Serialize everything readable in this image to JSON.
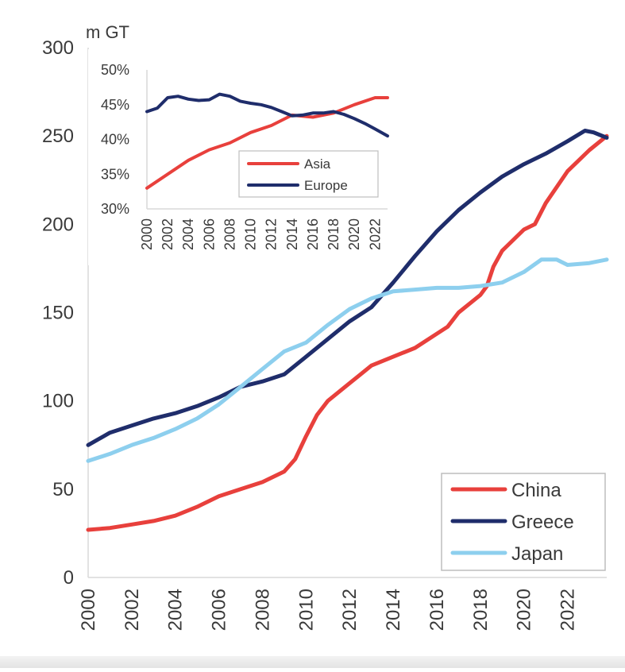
{
  "chart_data": [
    {
      "type": "line",
      "ylabel": "m GT",
      "ylim": [
        0,
        300
      ],
      "yticks": [
        "0",
        "50",
        "100",
        "150",
        "200",
        "250",
        "300"
      ],
      "xlim": [
        2000,
        2023.8
      ],
      "xticks": [
        "2000",
        "2002",
        "2004",
        "2006",
        "2008",
        "2010",
        "2012",
        "2014",
        "2016",
        "2018",
        "2020",
        "2022"
      ],
      "legend_position": "bottom-right",
      "series": [
        {
          "name": "China",
          "color": "#e8403c",
          "x": [
            2000,
            2001,
            2002,
            2003,
            2004,
            2005,
            2006,
            2007,
            2008,
            2009,
            2009.5,
            2010,
            2010.5,
            2011,
            2012,
            2012.5,
            2013,
            2014,
            2015,
            2016,
            2016.5,
            2017,
            2018,
            2018.3,
            2018.6,
            2019,
            2020,
            2020.5,
            2021,
            2022,
            2023,
            2023.8
          ],
          "values": [
            27,
            28,
            30,
            32,
            35,
            40,
            46,
            50,
            54,
            60,
            67,
            80,
            92,
            100,
            110,
            115,
            120,
            125,
            130,
            138,
            142,
            150,
            160,
            165,
            176,
            185,
            197,
            200,
            212,
            230,
            242,
            250
          ]
        },
        {
          "name": "Greece",
          "color": "#1f2d6b",
          "x": [
            2000,
            2001,
            2002,
            2003,
            2004,
            2005,
            2006,
            2007,
            2008,
            2009,
            2010,
            2011,
            2012,
            2013,
            2014,
            2015,
            2016,
            2017,
            2018,
            2019,
            2020,
            2021,
            2022,
            2022.8,
            2023.2,
            2023.8
          ],
          "values": [
            75,
            82,
            86,
            90,
            93,
            97,
            102,
            108,
            111,
            115,
            125,
            135,
            145,
            153,
            167,
            182,
            196,
            208,
            218,
            227,
            234,
            240,
            247,
            253,
            252,
            249
          ]
        },
        {
          "name": "Japan",
          "color": "#8dcfee",
          "x": [
            2000,
            2001,
            2002,
            2003,
            2004,
            2005,
            2006,
            2007,
            2008,
            2009,
            2010,
            2011,
            2012,
            2013,
            2014,
            2015,
            2016,
            2017,
            2018,
            2019,
            2020,
            2020.8,
            2021.5,
            2022,
            2023,
            2023.8
          ],
          "values": [
            66,
            70,
            75,
            79,
            84,
            90,
            98,
            108,
            118,
            128,
            133,
            143,
            152,
            158,
            162,
            163,
            164,
            164,
            165,
            167,
            173,
            180,
            180,
            177,
            178,
            180
          ]
        }
      ]
    },
    {
      "type": "line",
      "ylim": [
        30,
        50
      ],
      "yticks": [
        "30%",
        "35%",
        "40%",
        "45%",
        "50%"
      ],
      "xlim": [
        2000,
        2023.2
      ],
      "xticks": [
        "2000",
        "2002",
        "2004",
        "2006",
        "2008",
        "2010",
        "2012",
        "2014",
        "2016",
        "2018",
        "2020",
        "2022"
      ],
      "legend_position": "bottom-right",
      "series": [
        {
          "name": "Asia",
          "color": "#e8403c",
          "x": [
            2000,
            2002,
            2004,
            2006,
            2008,
            2010,
            2012,
            2014,
            2016,
            2018,
            2020,
            2022,
            2023.2
          ],
          "values": [
            33,
            35,
            37,
            38.5,
            39.5,
            41,
            42,
            43.5,
            43.2,
            43.8,
            45,
            46,
            46
          ]
        },
        {
          "name": "Europe",
          "color": "#1f2d6b",
          "x": [
            2000,
            2001,
            2002,
            2003,
            2004,
            2005,
            2006,
            2007,
            2008,
            2009,
            2010,
            2011,
            2012,
            2013,
            2014,
            2015,
            2016,
            2017,
            2018,
            2019,
            2020,
            2021,
            2022,
            2023.2
          ],
          "values": [
            44,
            44.5,
            46,
            46.2,
            45.8,
            45.6,
            45.7,
            46.5,
            46.2,
            45.5,
            45.2,
            45,
            44.6,
            44,
            43.4,
            43.5,
            43.8,
            43.8,
            44,
            43.6,
            43,
            42.3,
            41.5,
            40.5
          ]
        }
      ]
    }
  ]
}
